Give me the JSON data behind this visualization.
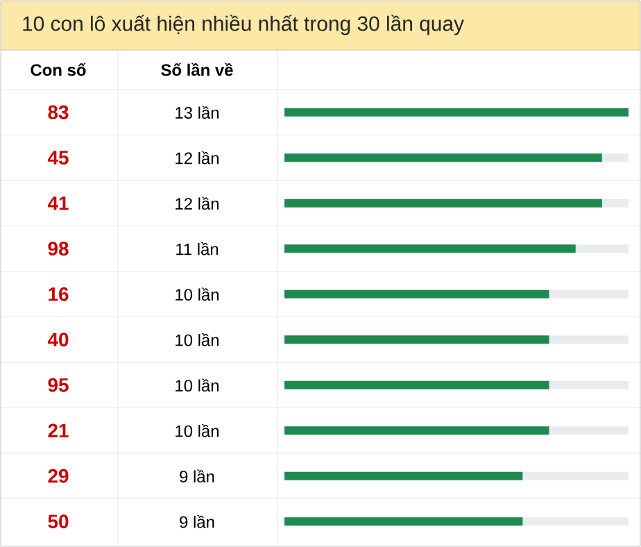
{
  "chart_data": {
    "type": "bar",
    "orientation": "horizontal",
    "title": "10 con lô xuất hiện nhiều nhất trong 30 lần quay",
    "annotations": [
      "Con số",
      "Số lần về"
    ],
    "categories": [
      "83",
      "45",
      "41",
      "98",
      "16",
      "40",
      "95",
      "21",
      "29",
      "50"
    ],
    "values": [
      13,
      12,
      12,
      11,
      10,
      10,
      10,
      10,
      9,
      9
    ],
    "value_labels": [
      "13 lần",
      "12 lần",
      "12 lần",
      "11 lần",
      "10 lần",
      "10 lần",
      "10 lần",
      "10 lần",
      "9 lần",
      "9 lần"
    ],
    "color": "#1e8a50",
    "tick_labels": "y"
  }
}
